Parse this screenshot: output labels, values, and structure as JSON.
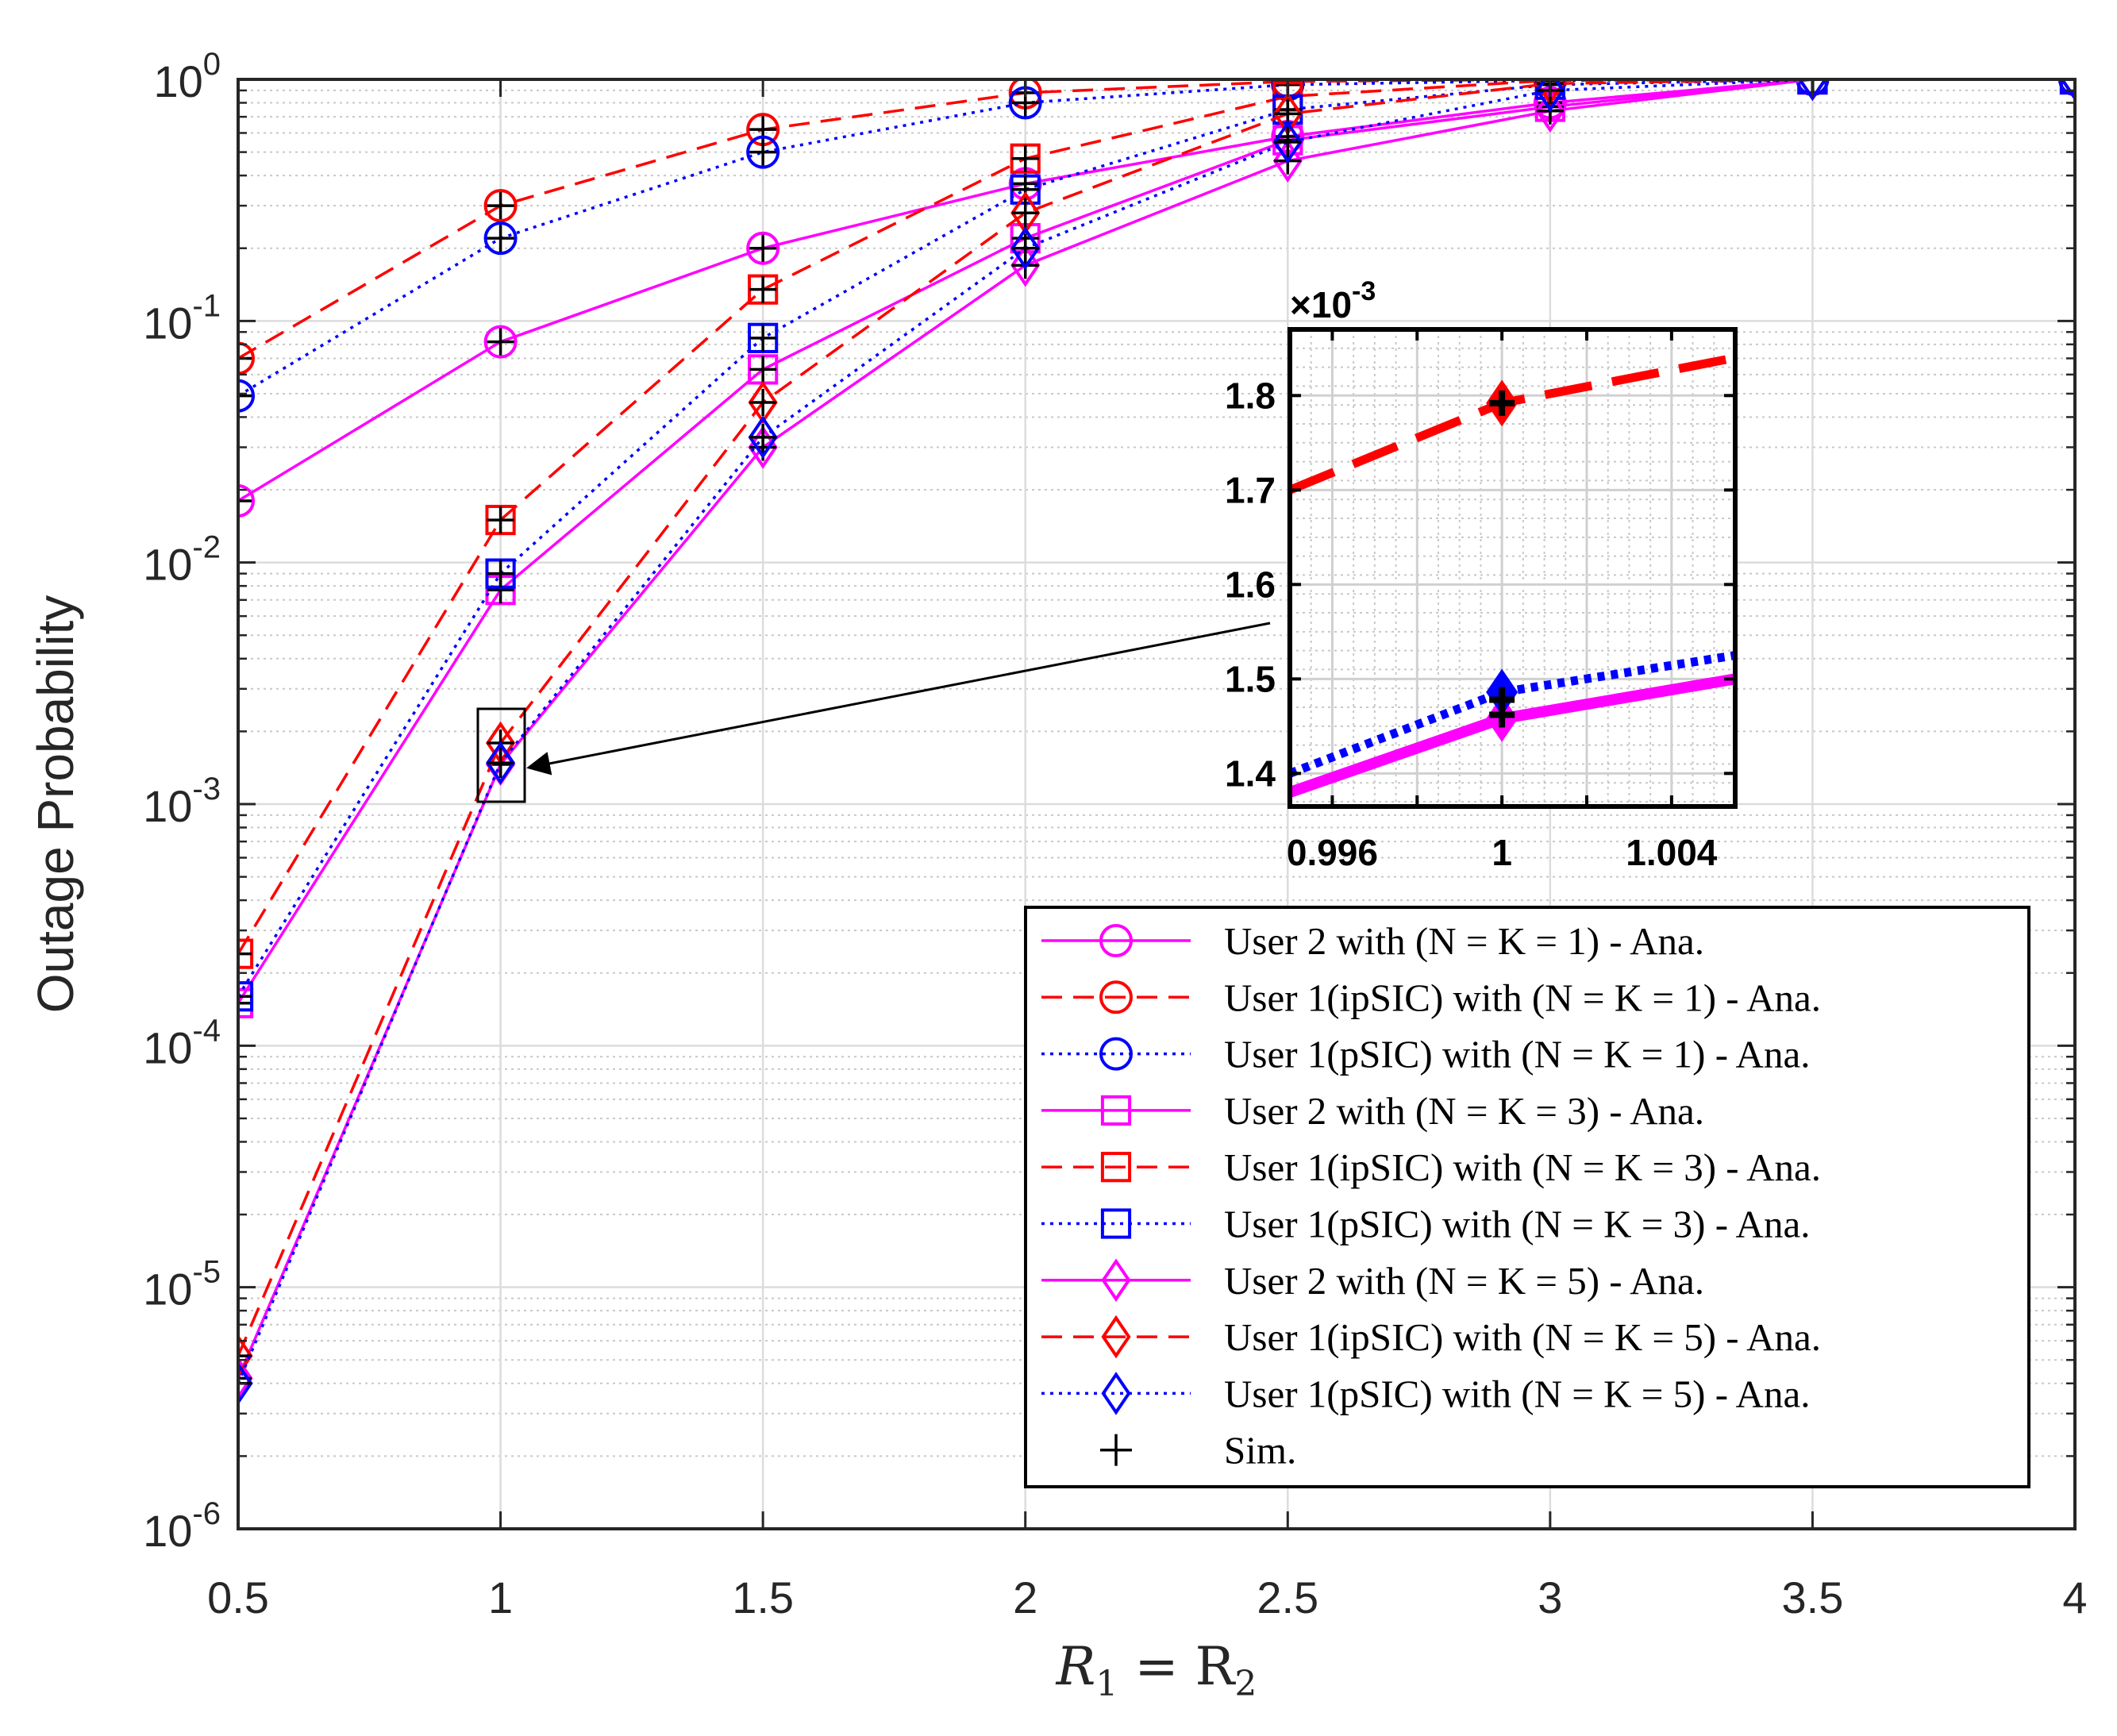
{
  "chart_data": {
    "type": "line",
    "title": "",
    "xlabel_main": "R",
    "xlabel_sub1": "1",
    "xlabel_eq": " = R",
    "xlabel_sub2": "2",
    "ylabel": "Outage Probability",
    "yscale": "log",
    "xlim": [
      0.5,
      4
    ],
    "ylim": [
      1e-06,
      1
    ],
    "xticks": [
      0.5,
      1,
      1.5,
      2,
      2.5,
      3,
      3.5,
      4
    ],
    "xtick_labels": [
      "0.5",
      "1",
      "1.5",
      "2",
      "2.5",
      "3",
      "3.5",
      "4"
    ],
    "yticks": [
      {
        "value": 1,
        "exp": "0"
      },
      {
        "value": 0.1,
        "exp": "-1"
      },
      {
        "value": 0.01,
        "exp": "-2"
      },
      {
        "value": 0.001,
        "exp": "-3"
      },
      {
        "value": 0.0001,
        "exp": "-4"
      },
      {
        "value": 1e-05,
        "exp": "-5"
      },
      {
        "value": 1e-06,
        "exp": "-6"
      }
    ],
    "ytick_base": "10",
    "x": [
      0.5,
      1,
      1.5,
      2,
      2.5,
      3,
      3.5,
      4
    ],
    "series": [
      {
        "name": "User 2 with (N = K = 1) - Ana.",
        "color": "#ff00ff",
        "dash": "solid",
        "marker": "circle",
        "values": [
          0.018,
          0.082,
          0.2,
          0.37,
          0.58,
          0.8,
          1,
          1
        ]
      },
      {
        "name": "User 1(ipSIC) with (N = K = 1) - Ana.",
        "color": "#ff0000",
        "dash": "dashed",
        "marker": "circle",
        "values": [
          0.07,
          0.3,
          0.62,
          0.88,
          0.98,
          1,
          1,
          1
        ]
      },
      {
        "name": "User 1(pSIC) with (N = K = 1) - Ana.",
        "color": "#0000ff",
        "dash": "dotted",
        "marker": "circle",
        "values": [
          0.049,
          0.22,
          0.5,
          0.8,
          0.95,
          0.99,
          1,
          1
        ]
      },
      {
        "name": "User 2 with (N = K = 3) - Ana.",
        "color": "#ff00ff",
        "dash": "solid",
        "marker": "square",
        "values": [
          0.00015,
          0.0077,
          0.063,
          0.22,
          0.56,
          0.77,
          1,
          1
        ]
      },
      {
        "name": "User 1(ipSIC) with (N = K = 3) - Ana.",
        "color": "#ff0000",
        "dash": "dashed",
        "marker": "square",
        "values": [
          0.00024,
          0.015,
          0.135,
          0.47,
          0.85,
          0.99,
          1,
          1
        ]
      },
      {
        "name": "User 1(pSIC) with (N = K = 3) - Ana.",
        "color": "#0000ff",
        "dash": "dotted",
        "marker": "square",
        "values": [
          0.00016,
          0.009,
          0.085,
          0.35,
          0.75,
          0.95,
          1,
          1
        ]
      },
      {
        "name": "User 2 with (N = K = 5) - Ana.",
        "color": "#ff00ff",
        "dash": "solid",
        "marker": "diamond",
        "values": [
          4.2e-06,
          0.00146,
          0.03,
          0.17,
          0.46,
          0.74,
          1,
          1
        ]
      },
      {
        "name": "User 1(ipSIC) with (N = K = 5) - Ana.",
        "color": "#ff0000",
        "dash": "dashed",
        "marker": "diamond",
        "values": [
          5.2e-06,
          0.00179,
          0.046,
          0.28,
          0.72,
          0.96,
          1,
          1
        ]
      },
      {
        "name": "User 1(pSIC) with (N = K = 5) - Ana.",
        "color": "#0000ff",
        "dash": "dotted",
        "marker": "diamond",
        "values": [
          4e-06,
          0.00148,
          0.033,
          0.2,
          0.55,
          0.9,
          1,
          1
        ]
      }
    ],
    "sim_label": "Sim.",
    "sim_color": "#000000",
    "legend_position": "bottom-right",
    "grid": true,
    "inset": {
      "xlim": [
        0.995,
        1.0055
      ],
      "ylim": [
        1.365,
        1.87
      ],
      "xticks": [
        0.996,
        1,
        1.004
      ],
      "xtick_labels": [
        "0.996",
        "1",
        "1.004"
      ],
      "yticks": [
        1.4,
        1.5,
        1.6,
        1.7,
        1.8
      ],
      "ytick_labels": [
        "1.4",
        "1.5",
        "1.6",
        "1.7",
        "1.8"
      ],
      "multiplier_prefix": "×10",
      "multiplier_exp": "-3",
      "curves": [
        {
          "color": "#ff00ff",
          "dash": "solid",
          "x": [
            0.995,
            1.0,
            1.0055
          ],
          "y": [
            1.38,
            1.458,
            1.5
          ],
          "marker_x": 1.0,
          "marker_y": 1.458,
          "marker": "diamond"
        },
        {
          "color": "#0000ff",
          "dash": "dotted",
          "x": [
            0.995,
            1.0,
            1.0055
          ],
          "y": [
            1.4,
            1.486,
            1.525
          ],
          "marker_x": 1.0,
          "marker_y": 1.486,
          "marker": "diamond"
        },
        {
          "color": "#ff0000",
          "dash": "dashed",
          "x": [
            0.995,
            1.0,
            1.0055
          ],
          "y": [
            1.7,
            1.792,
            1.84
          ],
          "marker_x": 1.0,
          "marker_y": 1.792,
          "marker": "diamond"
        }
      ],
      "sim_points": [
        [
          1.0,
          1.792
        ],
        [
          1.0,
          1.478
        ],
        [
          1.0,
          1.462
        ]
      ]
    }
  }
}
